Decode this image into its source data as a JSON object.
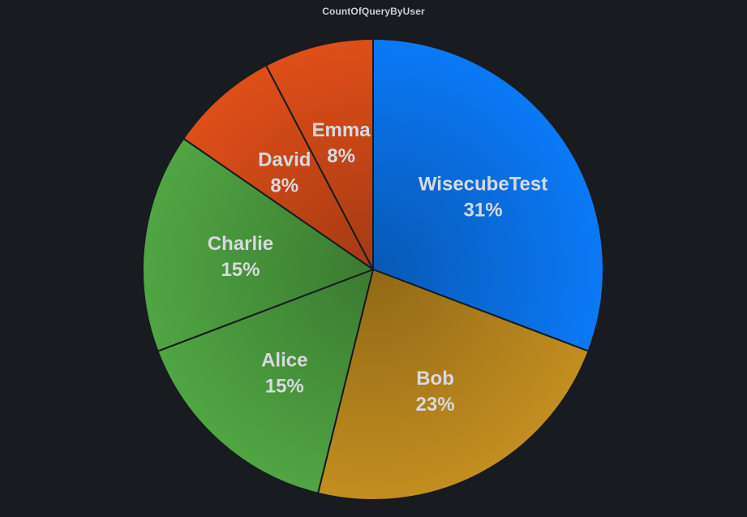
{
  "panel": {
    "title": "CountOfQueryByUser"
  },
  "chart_data": {
    "type": "pie",
    "title": "CountOfQueryByUser",
    "legend": "none",
    "slices": [
      {
        "label": "WisecubeTest",
        "percent_label": "31%",
        "value": 4,
        "color": "#0a72e8"
      },
      {
        "label": "Bob",
        "percent_label": "23%",
        "value": 3,
        "color": "#b8861e"
      },
      {
        "label": "Alice",
        "percent_label": "15%",
        "value": 2,
        "color": "#4b9c3f"
      },
      {
        "label": "Charlie",
        "percent_label": "15%",
        "value": 2,
        "color": "#4b9c3f"
      },
      {
        "label": "David",
        "percent_label": "8%",
        "value": 1,
        "color": "#d24a18"
      },
      {
        "label": "Emma",
        "percent_label": "8%",
        "value": 1,
        "color": "#d24a18"
      }
    ]
  }
}
